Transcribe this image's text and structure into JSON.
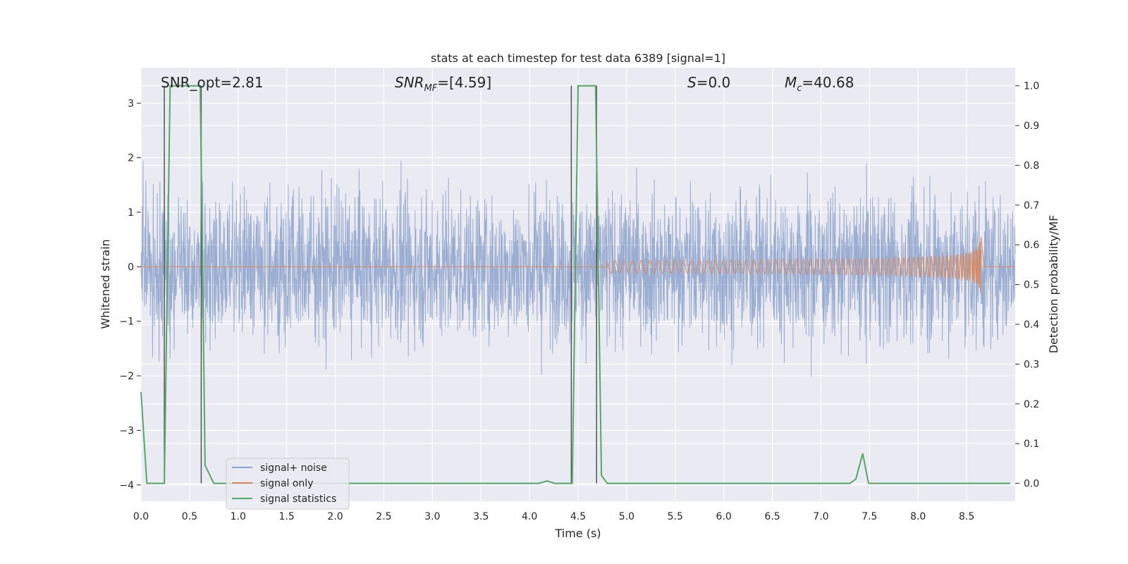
{
  "chart_data": {
    "type": "line",
    "title": "stats at each timestep for test data 6389 [signal=1]",
    "xlabel": "Time (s)",
    "ylabel": "Whitened strain",
    "y2label": "Detection probability/MF",
    "xlim": [
      0,
      9.0
    ],
    "ylim": [
      -4.3,
      3.65
    ],
    "y2lim": [
      -0.045,
      1.0455
    ],
    "xticks": [
      "0.0",
      "0.5",
      "1.0",
      "1.5",
      "2.0",
      "2.5",
      "3.0",
      "3.5",
      "4.0",
      "4.5",
      "5.0",
      "5.5",
      "6.0",
      "6.5",
      "7.0",
      "7.5",
      "8.0",
      "8.5"
    ],
    "yticks": [
      "−4",
      "−3",
      "−2",
      "−1",
      "0",
      "1",
      "2",
      "3"
    ],
    "y2ticks": [
      "0.0",
      "0.1",
      "0.2",
      "0.3",
      "0.4",
      "0.5",
      "0.6",
      "0.7",
      "0.8",
      "0.9",
      "1.0"
    ],
    "grid": true,
    "legend_placement": "lower-left",
    "annotations": {
      "snr_opt": "SNR_opt=2.81",
      "snr_mf_base": "SNR",
      "snr_mf_sub": "MF",
      "snr_mf_rest": "=[4.59]",
      "s_base": "S",
      "s_rest": "=0.0",
      "mc_base": "M",
      "mc_sub": "c",
      "mc_rest": "=40.68"
    },
    "colors": {
      "noise": "#4c72b0",
      "signal": "#dd8452",
      "stats": "#55a868",
      "vlines": "#555555",
      "background": "#eaeaf2"
    },
    "series": [
      {
        "name": "signal+ noise",
        "axis": "left",
        "noise_envelope": {
          "core_min": -1.8,
          "core_max": 1.8,
          "peak_min": -3.6,
          "peak_max": 3.25
        }
      },
      {
        "name": "signal only",
        "axis": "left",
        "chirp": {
          "t_merge": 8.65,
          "peak_amp": 0.62,
          "start_t": 4.8
        }
      },
      {
        "name": "signal statistics",
        "axis": "right",
        "x": [
          0.0,
          0.06,
          0.24,
          0.3,
          0.61,
          0.66,
          0.75,
          4.1,
          4.18,
          4.26,
          4.44,
          4.5,
          4.68,
          4.74,
          4.8,
          7.0,
          7.3,
          7.36,
          7.43,
          7.49,
          8.95
        ],
        "y": [
          0.23,
          0.0,
          0.0,
          1.0,
          1.0,
          0.045,
          0.0,
          0.0,
          0.006,
          0.0,
          0.0,
          1.0,
          1.0,
          0.02,
          0.0,
          0.0,
          0.0,
          0.011,
          0.075,
          0.0,
          0.0
        ]
      }
    ],
    "vertical_lines": {
      "x": [
        0.24,
        0.62,
        4.43,
        4.69
      ],
      "spans_y2": [
        [
          0.0,
          1.0
        ],
        [
          0.0,
          1.0
        ],
        [
          0.0,
          1.0
        ],
        [
          0.0,
          1.0
        ]
      ]
    }
  }
}
